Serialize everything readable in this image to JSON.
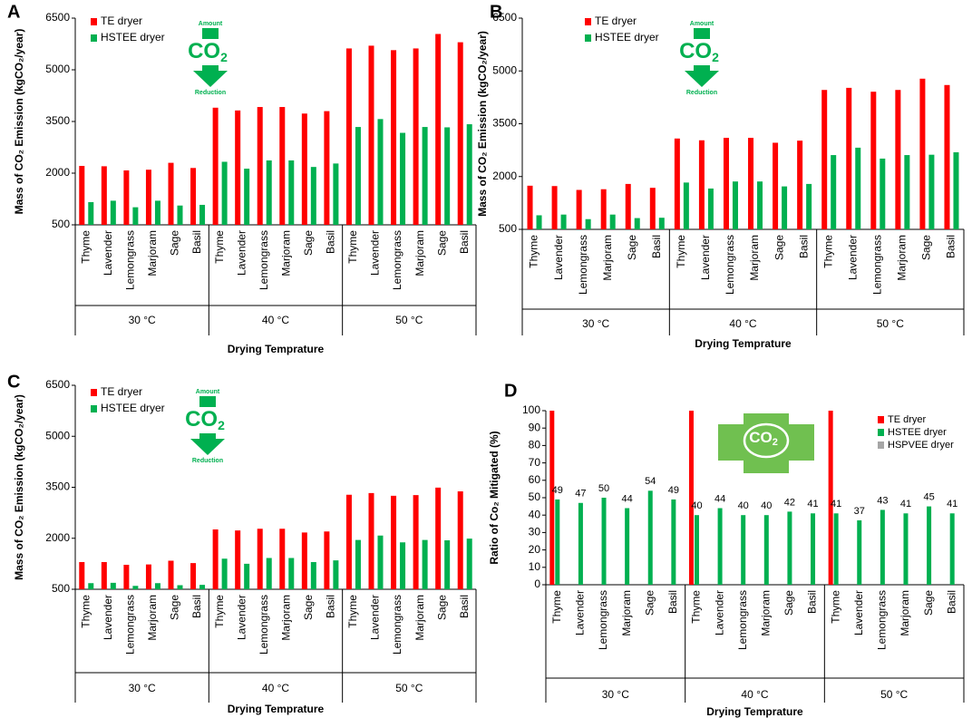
{
  "chart_data": [
    {
      "type": "bar",
      "panel": "A",
      "ylabel": "Mass of CO₂ Emission (kgCO₂/year)",
      "xlabel": "Drying Temprature",
      "groups": [
        "30 °C",
        "40 °C",
        "50 °C"
      ],
      "categories": [
        "Thyme",
        "Lavender",
        "Lemongrass",
        "Marjoram",
        "Sage",
        "Basil",
        "Thyme",
        "Lavender",
        "Lemongrass",
        "Marjoram",
        "Sage",
        "Basil",
        "Thyme",
        "Lavender",
        "Lemongrass",
        "Marjoram",
        "Sage",
        "Basil"
      ],
      "series": [
        {
          "name": "TE dryer",
          "color": "#ff0000",
          "values": [
            2210,
            2200,
            2080,
            2100,
            2300,
            2150,
            3900,
            3820,
            3920,
            3920,
            3730,
            3800,
            5620,
            5700,
            5570,
            5620,
            6040,
            5800
          ]
        },
        {
          "name": "HSTEE dryer",
          "color": "#00b050",
          "values": [
            1160,
            1200,
            1010,
            1200,
            1060,
            1080,
            2330,
            2130,
            2370,
            2370,
            2180,
            2280,
            3340,
            3570,
            3170,
            3340,
            3330,
            3420
          ]
        }
      ],
      "ylim": [
        500,
        6500
      ],
      "yticks": [
        500,
        2000,
        3500,
        5000,
        6500
      ],
      "grid": false,
      "legend": "upper left",
      "icon": {
        "top": "Amount",
        "main": "CO",
        "sub": "2",
        "bottom": "Reduction"
      }
    },
    {
      "type": "bar",
      "panel": "B",
      "ylabel": "Mass of CO₂ Emission (kgCO₂/year)",
      "xlabel": "Drying Temprature",
      "groups": [
        "30 °C",
        "40 °C",
        "50 °C"
      ],
      "categories": [
        "Thyme",
        "Lavender",
        "Lemongrass",
        "Marjoram",
        "Sage",
        "Basil",
        "Thyme",
        "Lavender",
        "Lemongrass",
        "Marjoram",
        "Sage",
        "Basil",
        "Thyme",
        "Lavender",
        "Lemongrass",
        "Marjoram",
        "Sage",
        "Basil"
      ],
      "series": [
        {
          "name": "TE dryer",
          "color": "#ff0000",
          "values": [
            1740,
            1730,
            1620,
            1640,
            1790,
            1680,
            3080,
            3030,
            3100,
            3100,
            2960,
            3020,
            4460,
            4520,
            4410,
            4460,
            4780,
            4600
          ]
        },
        {
          "name": "HSTEE dryer",
          "color": "#00b050",
          "values": [
            900,
            920,
            790,
            920,
            820,
            830,
            1830,
            1660,
            1860,
            1860,
            1720,
            1790,
            2610,
            2820,
            2510,
            2610,
            2620,
            2690
          ]
        }
      ],
      "ylim": [
        500,
        6500
      ],
      "yticks": [
        500,
        2000,
        3500,
        5000,
        6500
      ],
      "grid": false,
      "legend": "upper left",
      "icon": {
        "top": "Amount",
        "main": "CO",
        "sub": "2",
        "bottom": "Reduction"
      }
    },
    {
      "type": "bar",
      "panel": "C",
      "ylabel": "Mass of CO₂ Emission (kgCO₂/year)",
      "xlabel": "Drying Temprature",
      "groups": [
        "30 °C",
        "40 °C",
        "50 °C"
      ],
      "categories": [
        "Thyme",
        "Lavender",
        "Lemongrass",
        "Marjoram",
        "Sage",
        "Basil",
        "Thyme",
        "Lavender",
        "Lemongrass",
        "Marjoram",
        "Sage",
        "Basil",
        "Thyme",
        "Lavender",
        "Lemongrass",
        "Marjoram",
        "Sage",
        "Basil"
      ],
      "series": [
        {
          "name": "TE dryer",
          "color": "#ff0000",
          "values": [
            1300,
            1300,
            1220,
            1230,
            1340,
            1270,
            2260,
            2230,
            2280,
            2280,
            2170,
            2200,
            3280,
            3330,
            3250,
            3270,
            3490,
            3380
          ]
        },
        {
          "name": "HSTEE dryer",
          "color": "#00b050",
          "values": [
            680,
            690,
            600,
            680,
            620,
            630,
            1400,
            1250,
            1420,
            1420,
            1300,
            1350,
            1950,
            2080,
            1880,
            1950,
            1940,
            1990
          ]
        }
      ],
      "ylim": [
        500,
        6500
      ],
      "yticks": [
        500,
        2000,
        3500,
        5000,
        6500
      ],
      "grid": false,
      "legend": "upper left",
      "icon": {
        "top": "Amount",
        "main": "CO",
        "sub": "2",
        "bottom": "Reduction"
      }
    },
    {
      "type": "bar",
      "panel": "D",
      "ylabel": "Ratio of Co₂ Mitigated (%)",
      "xlabel": "Drying Temprature",
      "groups": [
        "30 °C",
        "40 °C",
        "50 °C"
      ],
      "categories": [
        "Thyme",
        "Lavender",
        "Lemongrass",
        "Marjoram",
        "Sage",
        "Basil",
        "Thyme",
        "Lavender",
        "Lemongrass",
        "Marjoram",
        "Sage",
        "Basil",
        "Thyme",
        "Lavender",
        "Lemongrass",
        "Marjoram",
        "Sage",
        "Basil"
      ],
      "series": [
        {
          "name": "TE dryer",
          "color": "#ff0000",
          "values": [
            100,
            null,
            null,
            null,
            null,
            null,
            100,
            null,
            null,
            null,
            null,
            null,
            100,
            null,
            null,
            null,
            null,
            null
          ]
        },
        {
          "name": "HSTEE dryer",
          "color": "#00b050",
          "show_values": true,
          "values": [
            49,
            47,
            50,
            44,
            54,
            49,
            40,
            44,
            40,
            40,
            42,
            41,
            41,
            37,
            43,
            41,
            45,
            41
          ]
        },
        {
          "name": "HSPVEE dryer",
          "color": "#a6a6a6",
          "values": [
            null,
            null,
            null,
            null,
            null,
            null,
            null,
            null,
            null,
            null,
            null,
            null,
            null,
            null,
            null,
            null,
            null,
            null
          ]
        }
      ],
      "ylim": [
        0,
        100
      ],
      "yticks": [
        0,
        10,
        20,
        30,
        40,
        50,
        60,
        70,
        80,
        90,
        100
      ],
      "grid": false,
      "legend": "upper right",
      "icon": {
        "main": "CO",
        "sub": "2"
      }
    }
  ]
}
